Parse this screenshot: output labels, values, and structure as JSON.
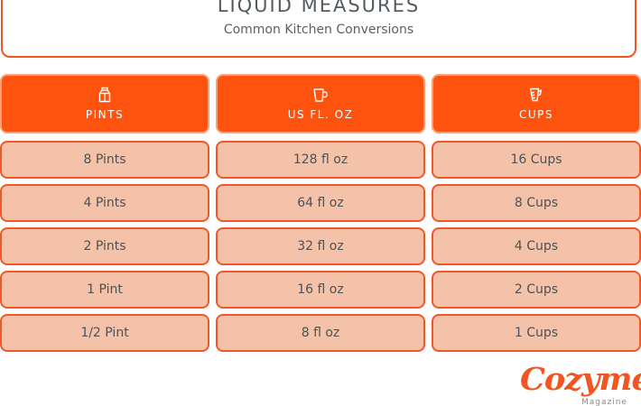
{
  "header": {
    "title": "LIQUID MEASURES",
    "subtitle": "Common Kitchen Conversions"
  },
  "columns": [
    {
      "label": "PINTS",
      "icon": "milk-carton-icon",
      "rows": [
        "8 Pints",
        "4 Pints",
        "2 Pints",
        "1 Pint",
        "1/2 Pint"
      ]
    },
    {
      "label": "US FL. OZ",
      "icon": "measuring-pitcher-icon",
      "rows": [
        "128 fl oz",
        "64 fl oz",
        "32 fl oz",
        "16 fl oz",
        "8 fl oz"
      ]
    },
    {
      "label": "CUPS",
      "icon": "measuring-cup-icon",
      "rows": [
        "16 Cups",
        "8 Cups",
        "4 Cups",
        "2 Cups",
        "1 Cups"
      ]
    }
  ],
  "brand": {
    "name": "Cozymeal",
    "sub": "Magazine",
    "accent_color": "#fe520f",
    "cell_color": "#f4c1a9"
  }
}
